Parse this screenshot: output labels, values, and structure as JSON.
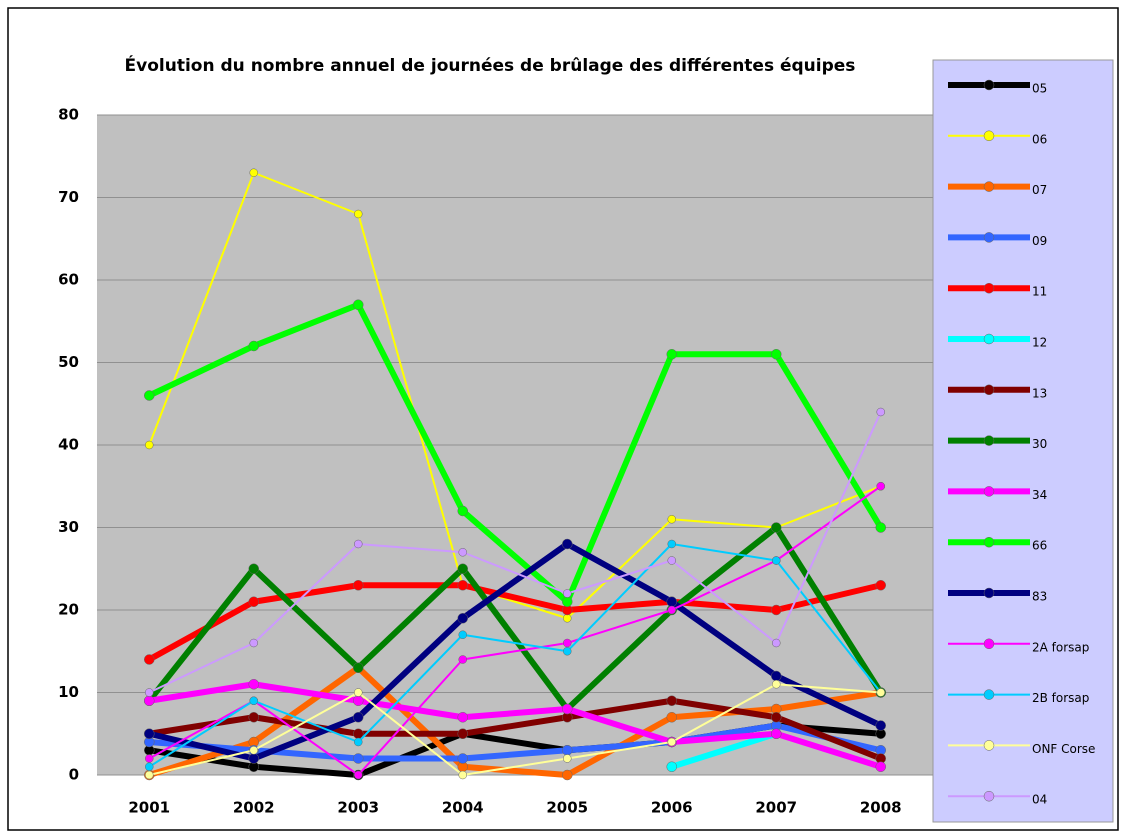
{
  "chart_data": {
    "type": "line",
    "title": "Évolution du nombre annuel de journées de brûlage des différentes  équipes",
    "categories": [
      "2001",
      "2002",
      "2003",
      "2004",
      "2005",
      "2006",
      "2007",
      "2008"
    ],
    "ylim": [
      0,
      80
    ],
    "yticks": [
      0,
      10,
      20,
      30,
      40,
      50,
      60,
      70,
      80
    ],
    "grid": true,
    "legend": "right",
    "series": [
      {
        "name": "05",
        "color": "#000000",
        "line_width": 6,
        "values": [
          3,
          1,
          0,
          5,
          3,
          4,
          6,
          5
        ]
      },
      {
        "name": "06",
        "color": "#ffff00",
        "line_width": 2,
        "values": [
          40,
          73,
          68,
          23,
          19,
          31,
          30,
          35
        ]
      },
      {
        "name": "07",
        "color": "#ff6600",
        "line_width": 6,
        "values": [
          0,
          4,
          13,
          1,
          0,
          7,
          8,
          10
        ]
      },
      {
        "name": "09",
        "color": "#3366ff",
        "line_width": 6,
        "values": [
          4,
          3,
          2,
          2,
          3,
          4,
          6,
          3
        ]
      },
      {
        "name": "11",
        "color": "#ff0000",
        "line_width": 6,
        "values": [
          14,
          21,
          23,
          23,
          20,
          21,
          20,
          23
        ]
      },
      {
        "name": "12",
        "color": "#00ffff",
        "line_width": 6,
        "values": [
          null,
          null,
          null,
          null,
          null,
          1,
          5,
          null
        ]
      },
      {
        "name": "13",
        "color": "#800000",
        "line_width": 6,
        "values": [
          5,
          7,
          5,
          5,
          7,
          9,
          7,
          2
        ]
      },
      {
        "name": "30",
        "color": "#008000",
        "line_width": 6,
        "values": [
          9,
          25,
          13,
          25,
          8,
          20,
          30,
          10
        ]
      },
      {
        "name": "34",
        "color": "#ff00ff",
        "line_width": 6,
        "values": [
          9,
          11,
          9,
          7,
          8,
          4,
          5,
          1
        ]
      },
      {
        "name": "66",
        "color": "#00ff00",
        "line_width": 6,
        "values": [
          46,
          52,
          57,
          32,
          21,
          51,
          51,
          30
        ]
      },
      {
        "name": "83",
        "color": "#000080",
        "line_width": 6,
        "values": [
          5,
          2,
          7,
          19,
          28,
          21,
          12,
          6
        ]
      },
      {
        "name": "2A forsap",
        "color": "#ff00ff",
        "line_width": 2,
        "values": [
          2,
          9,
          0,
          14,
          16,
          20,
          26,
          35
        ]
      },
      {
        "name": "2B forsap",
        "color": "#00ccff",
        "line_width": 2,
        "values": [
          1,
          9,
          4,
          17,
          15,
          28,
          26,
          10
        ]
      },
      {
        "name": "ONF Corse",
        "color": "#ffff99",
        "line_width": 2,
        "values": [
          0,
          3,
          10,
          0,
          2,
          4,
          11,
          10
        ]
      },
      {
        "name": "04",
        "color": "#cc99ff",
        "line_width": 2,
        "values": [
          10,
          16,
          28,
          27,
          22,
          26,
          16,
          44
        ]
      }
    ]
  }
}
